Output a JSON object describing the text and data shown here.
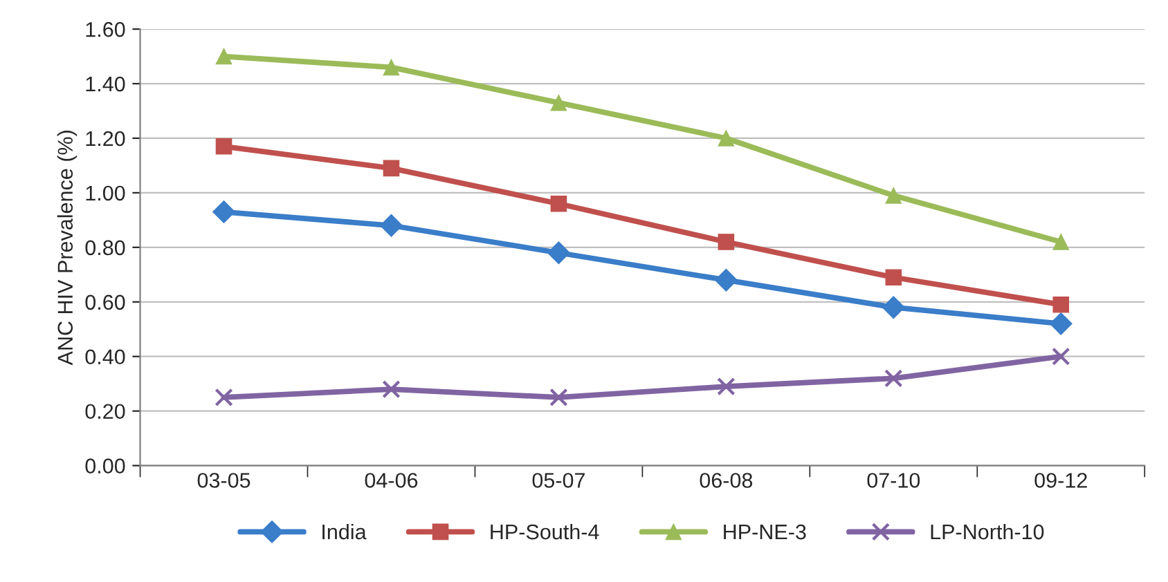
{
  "chart_data": {
    "type": "line",
    "ylabel": "ANC HIV Prevalence (%)",
    "categories": [
      "03-05",
      "04-06",
      "05-07",
      "06-08",
      "07-10",
      "09-12"
    ],
    "series": [
      {
        "name": "India",
        "color": "#3a7dc9",
        "marker": "diamond",
        "values": [
          0.93,
          0.88,
          0.78,
          0.68,
          0.58,
          0.52
        ]
      },
      {
        "name": "HP-South-4",
        "color": "#c0504d",
        "marker": "square",
        "values": [
          1.17,
          1.09,
          0.96,
          0.82,
          0.69,
          0.59
        ]
      },
      {
        "name": "HP-NE-3",
        "color": "#9bbb59",
        "marker": "triangle",
        "values": [
          1.5,
          1.46,
          1.33,
          1.2,
          0.99,
          0.82
        ]
      },
      {
        "name": "LP-North-10",
        "color": "#8064a2",
        "marker": "cross",
        "values": [
          0.25,
          0.28,
          0.25,
          0.29,
          0.32,
          0.4
        ]
      }
    ],
    "ylim": [
      0,
      1.6
    ],
    "yticks": [
      {
        "value": 0,
        "label": "0.00"
      },
      {
        "value": 0.2,
        "label": "0.20"
      },
      {
        "value": 0.4,
        "label": "0.40"
      },
      {
        "value": 0.6,
        "label": "0.60"
      },
      {
        "value": 0.8,
        "label": "0.80"
      },
      {
        "value": 1.0,
        "label": "1.00"
      },
      {
        "value": 1.2,
        "label": "1.20"
      },
      {
        "value": 1.4,
        "label": "1.40"
      },
      {
        "value": 1.6,
        "label": "1.60"
      }
    ],
    "grid": "y",
    "legend": "bottom",
    "line_style": "solid"
  }
}
